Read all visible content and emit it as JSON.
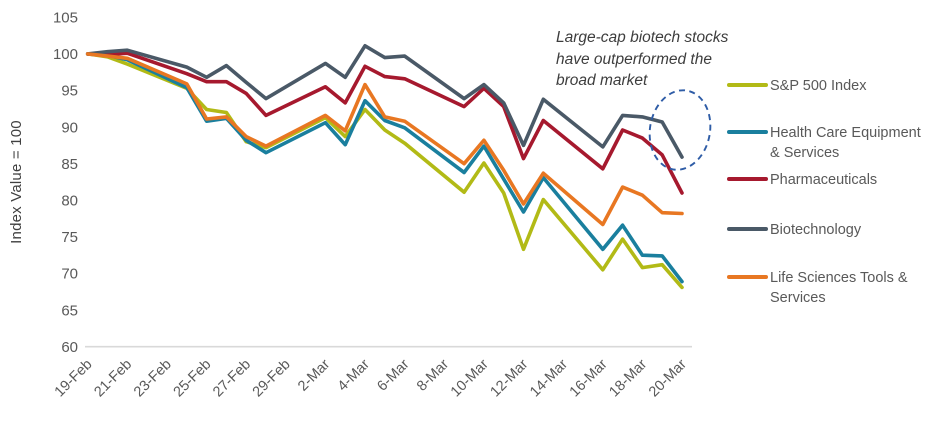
{
  "annotation": {
    "lines": [
      "Large-cap biotech stocks",
      "have outperformed the",
      "broad market"
    ]
  },
  "callout": {
    "shape": "dashed-ellipse",
    "color": "#2e5ca6"
  },
  "colors": {
    "axis_text": "#595959",
    "annotation_text": "#3d3d3d",
    "baseline": "#d9d9d9"
  },
  "y_axis": {
    "title": "Index Value = 100",
    "min": 60,
    "max": 105,
    "step": 5,
    "tick_labels": [
      "105",
      "100",
      "95",
      "90",
      "85",
      "80",
      "75",
      "70",
      "65",
      "60"
    ]
  },
  "x_axis": {
    "tick_labels": [
      "19-Feb",
      "21-Feb",
      "23-Feb",
      "25-Feb",
      "27-Feb",
      "29-Feb",
      "2-Mar",
      "4-Mar",
      "6-Mar",
      "8-Mar",
      "10-Mar",
      "12-Mar",
      "14-Mar",
      "16-Mar",
      "18-Mar",
      "20-Mar"
    ],
    "tick_day_offsets": [
      0,
      2,
      4,
      6,
      8,
      10,
      12,
      14,
      16,
      18,
      20,
      22,
      24,
      26,
      28,
      30
    ]
  },
  "chart_data": {
    "type": "line",
    "title": "",
    "xlabel": "",
    "ylabel": "Index Value = 100",
    "ylim": [
      60,
      105
    ],
    "grid": false,
    "legend_position": "right",
    "x": [
      "19-Feb",
      "20-Feb",
      "21-Feb",
      "24-Feb",
      "25-Feb",
      "26-Feb",
      "27-Feb",
      "28-Feb",
      "2-Mar",
      "3-Mar",
      "4-Mar",
      "5-Mar",
      "6-Mar",
      "9-Mar",
      "10-Mar",
      "11-Mar",
      "12-Mar",
      "13-Mar",
      "16-Mar",
      "17-Mar",
      "18-Mar",
      "19-Mar",
      "20-Mar"
    ],
    "x_day_offsets": [
      0,
      1,
      2,
      5,
      6,
      7,
      8,
      9,
      12,
      13,
      14,
      15,
      16,
      19,
      20,
      21,
      22,
      23,
      26,
      27,
      28,
      29,
      30
    ],
    "series": [
      {
        "name": "S&P 500 Index",
        "color": "#b2ba16",
        "values": [
          100,
          99.6,
          98.6,
          95.3,
          92.4,
          92.0,
          88.0,
          87.2,
          91.3,
          88.7,
          92.4,
          89.6,
          87.8,
          81.1,
          85.1,
          81.0,
          73.3,
          80.1,
          70.5,
          74.7,
          70.8,
          71.2,
          68.1
        ]
      },
      {
        "name": "Health Care Equipment & Services",
        "color": "#1a7f9e",
        "values": [
          100,
          99.8,
          99.2,
          95.4,
          90.8,
          91.2,
          88.2,
          86.5,
          90.6,
          87.6,
          93.6,
          90.9,
          89.9,
          83.8,
          87.4,
          82.9,
          78.4,
          83.1,
          73.3,
          76.6,
          72.5,
          72.4,
          68.9
        ]
      },
      {
        "name": "Pharmaceuticals",
        "color": "#a6192e",
        "values": [
          100,
          99.9,
          100.1,
          97.3,
          96.2,
          96.2,
          94.6,
          91.6,
          95.5,
          93.3,
          98.3,
          96.9,
          96.6,
          92.8,
          95.3,
          92.8,
          85.7,
          90.9,
          84.3,
          89.6,
          88.5,
          86.2,
          81.0
        ]
      },
      {
        "name": "Biotechnology",
        "color": "#4a5967",
        "values": [
          100,
          100.3,
          100.5,
          98.2,
          96.8,
          98.4,
          96.1,
          93.9,
          98.7,
          96.8,
          101.1,
          99.5,
          99.7,
          93.9,
          95.8,
          93.3,
          87.5,
          93.8,
          87.3,
          91.6,
          91.4,
          90.7,
          85.9
        ]
      },
      {
        "name": "Life Sciences Tools & Services",
        "color": "#e87722",
        "values": [
          100,
          99.7,
          99.4,
          95.9,
          91.1,
          91.4,
          88.7,
          87.4,
          91.6,
          89.5,
          95.8,
          91.4,
          90.8,
          85.0,
          88.2,
          84.1,
          79.5,
          83.7,
          76.7,
          81.8,
          80.7,
          78.3,
          78.2
        ]
      }
    ]
  }
}
